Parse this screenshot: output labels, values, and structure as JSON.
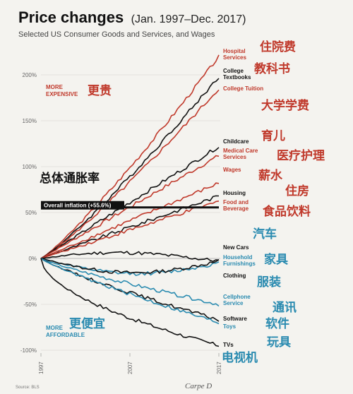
{
  "header": {
    "title": "Price changes",
    "title_range": "(Jan. 1997–Dec. 2017)",
    "subtitle": "Selected US Consumer Goods and Services, and Wages"
  },
  "annotations": {
    "more_expensive": [
      "MORE",
      "EXPENSIVE"
    ],
    "more_expensive_cn": "更贵",
    "more_affordable": [
      "MORE",
      "AFFORDABLE"
    ],
    "more_affordable_cn": "更便宜",
    "overall_inflation_cn": "总体通胀率",
    "overall_inflation": "Overall inflation (+55.6%)"
  },
  "footer": {
    "source": "Source: BLS",
    "brand": "Carpe D"
  },
  "colors": {
    "red": "#c0392b",
    "dark": "#111111",
    "blue": "#2a8bb0",
    "bg": "#f4f3ef"
  },
  "chart_data": {
    "type": "line",
    "x_ticks": [
      "1997",
      "2007",
      "2017"
    ],
    "xlim": [
      1997,
      2017
    ],
    "ylim": [
      -100,
      225
    ],
    "y_ticks": [
      "200%",
      "150%",
      "100%",
      "50%",
      "0%",
      "-50%",
      "-100%"
    ],
    "y_tick_values": [
      200,
      150,
      100,
      50,
      0,
      -50,
      -100
    ],
    "inflation_value": 55.6,
    "series": [
      {
        "name": "Hospital Services",
        "label_lines": [
          "Hospital",
          "Services"
        ],
        "cn": "住院费",
        "final": 220,
        "shape": "convex",
        "color_key": "red"
      },
      {
        "name": "College Textbooks",
        "label_lines": [
          "College",
          "Textbooks"
        ],
        "cn": "教科书",
        "final": 198,
        "shape": "convex",
        "color_key": "dark"
      },
      {
        "name": "College Tuition",
        "label_lines": [
          "College Tuition"
        ],
        "cn": "大学学费",
        "final": 185,
        "shape": "convex",
        "color_key": "red"
      },
      {
        "name": "Childcare",
        "label_lines": [
          "Childcare"
        ],
        "cn": "育儿",
        "final": 122,
        "shape": "linear",
        "color_key": "dark"
      },
      {
        "name": "Medical Care Services",
        "label_lines": [
          "Medical Care",
          "Services"
        ],
        "cn": "医疗护理",
        "final": 112,
        "shape": "linear",
        "color_key": "red"
      },
      {
        "name": "Wages",
        "label_lines": [
          "Wages"
        ],
        "cn": "薪水",
        "final": 82,
        "shape": "linear",
        "color_key": "red"
      },
      {
        "name": "Housing",
        "label_lines": [
          "Housing"
        ],
        "cn": "住房",
        "final": 68,
        "shape": "linear",
        "color_key": "dark"
      },
      {
        "name": "Food and Beverage",
        "label_lines": [
          "Food and",
          "Beverage"
        ],
        "cn": "食品饮料",
        "final": 62,
        "shape": "linear",
        "color_key": "red"
      },
      {
        "name": "New Cars",
        "label_lines": [
          "New Cars"
        ],
        "cn": "汽车",
        "final": 1,
        "shape": "flat",
        "color_key": "dark"
      },
      {
        "name": "Household Furnishings",
        "label_lines": [
          "Household",
          "Furnishings"
        ],
        "cn": "家具",
        "final": -5,
        "shape": "dip",
        "color_key": "blue"
      },
      {
        "name": "Clothing",
        "label_lines": [
          "Clothing"
        ],
        "cn": "服装",
        "final": -3,
        "shape": "dip",
        "color_key": "dark"
      },
      {
        "name": "Cellphone Service",
        "label_lines": [
          "Cellphone",
          "Service"
        ],
        "cn": "通讯",
        "final": -50,
        "shape": "decline",
        "color_key": "blue"
      },
      {
        "name": "Software",
        "label_lines": [
          "Software"
        ],
        "cn": "软件",
        "final": -67,
        "shape": "decline",
        "color_key": "dark"
      },
      {
        "name": "Toys",
        "label_lines": [
          "Toys"
        ],
        "cn": "玩具",
        "final": -70,
        "shape": "decline",
        "color_key": "blue"
      },
      {
        "name": "TVs",
        "label_lines": [
          "TVs"
        ],
        "cn": "电视机",
        "final": -95,
        "shape": "tv",
        "color_key": "dark"
      }
    ]
  }
}
